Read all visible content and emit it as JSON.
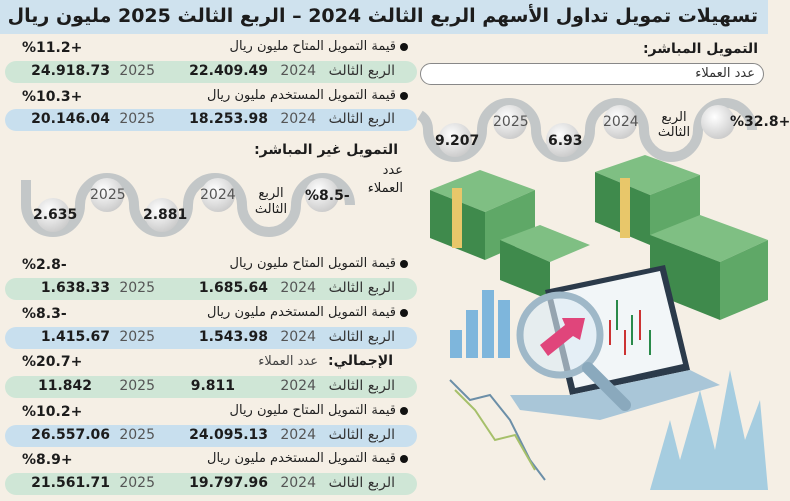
{
  "title": "تسهيلات تمويل تداول الأسهم الربع الثالث 2024 – الربع الثالث 2025 مليون ريال",
  "quarter_label": "الربع الثالث",
  "year1": "2024",
  "year2": "2025",
  "direct": {
    "heading": "التمويل المباشر:",
    "clients_label": "عدد العملاء",
    "clients": {
      "change": "%32.8+",
      "v2024": "6.93",
      "v2025": "9.207"
    },
    "available": {
      "label": "قيمة التمويل المتاح مليون ريال",
      "change": "%11.2+",
      "v2024": "22.409.49",
      "v2025": "24.918.73"
    },
    "used": {
      "label": "قيمة التمويل المستخدم مليون ريال",
      "change": "%10.3+",
      "v2024": "18.253.98",
      "v2025": "20.146.04"
    }
  },
  "indirect": {
    "heading": "التمويل غير المباشر:",
    "clients_label": "عدد العملاء",
    "clients": {
      "change": "%8.5-",
      "v2024": "2.881",
      "v2025": "2.635"
    },
    "available": {
      "label": "قيمة التمويل المتاح مليون ريال",
      "change": "%2.8-",
      "v2024": "1.685.64",
      "v2025": "1.638.33"
    },
    "used": {
      "label": "قيمة التمويل المستخدم مليون ريال",
      "change": "%8.3-",
      "v2024": "1.543.98",
      "v2025": "1.415.67"
    }
  },
  "total": {
    "heading": "الإجمالي:",
    "clients_label": "عدد العملاء",
    "clients": {
      "change": "%20.7+",
      "v2024": "9.811",
      "v2025": "11.842"
    },
    "available": {
      "label": "قيمة التمويل المتاح مليون ريال",
      "change": "%10.2+",
      "v2024": "24.095.13",
      "v2025": "26.557.06"
    },
    "used": {
      "label": "قيمة التمويل المستخدم مليون ريال",
      "change": "%8.9+",
      "v2024": "19.797.96",
      "v2025": "21.561.71"
    }
  },
  "colors": {
    "background": "#f5efe5",
    "header": "#cfe2ee",
    "green_row": "#cfe6d6",
    "blue_row": "#c8dfee",
    "money": "#4f9a5a"
  }
}
